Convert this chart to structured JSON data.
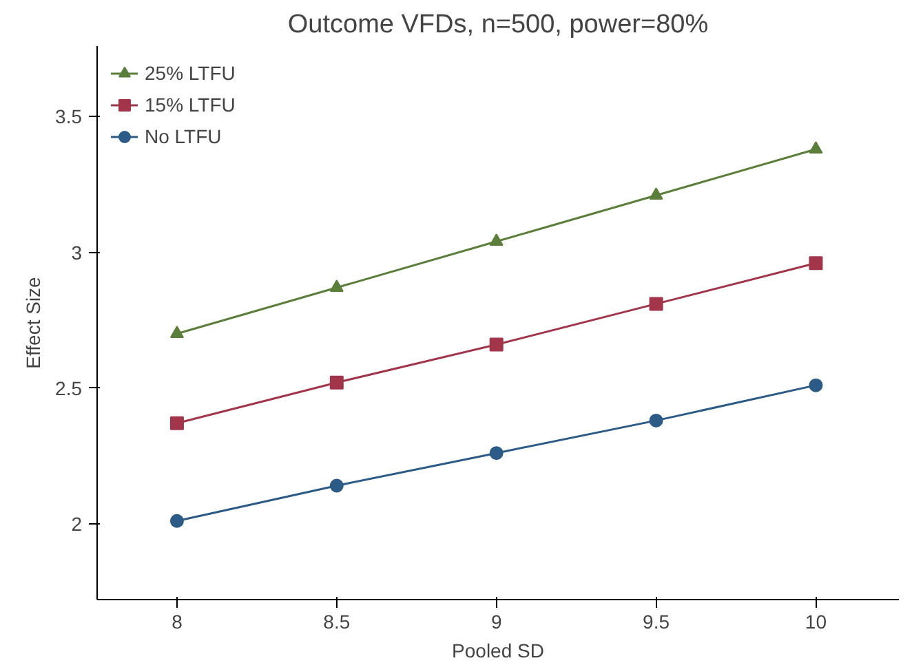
{
  "chart_data": {
    "type": "line",
    "title": "Outcome VFDs, n=500, power=80%",
    "xlabel": "Pooled SD",
    "ylabel": "Effect Size",
    "x": [
      8,
      8.5,
      9,
      9.5,
      10
    ],
    "series": [
      {
        "name": "25% LTFU",
        "color": "#5b7f3b",
        "marker": "triangle",
        "values": [
          2.7,
          2.87,
          3.04,
          3.21,
          3.38
        ]
      },
      {
        "name": "15% LTFU",
        "color": "#a3354b",
        "marker": "square",
        "values": [
          2.37,
          2.52,
          2.66,
          2.81,
          2.96
        ]
      },
      {
        "name": "No LTFU",
        "color": "#2b5b86",
        "marker": "circle",
        "values": [
          2.01,
          2.14,
          2.26,
          2.38,
          2.51
        ]
      }
    ],
    "xlim": [
      7.75,
      10.26
    ],
    "ylim": [
      1.72,
      3.76
    ],
    "xticks": [
      8,
      8.5,
      9,
      9.5,
      10
    ],
    "yticks": [
      2,
      2.5,
      3,
      3.5
    ],
    "grid": false,
    "legend": "top left",
    "line_style": "solid"
  }
}
